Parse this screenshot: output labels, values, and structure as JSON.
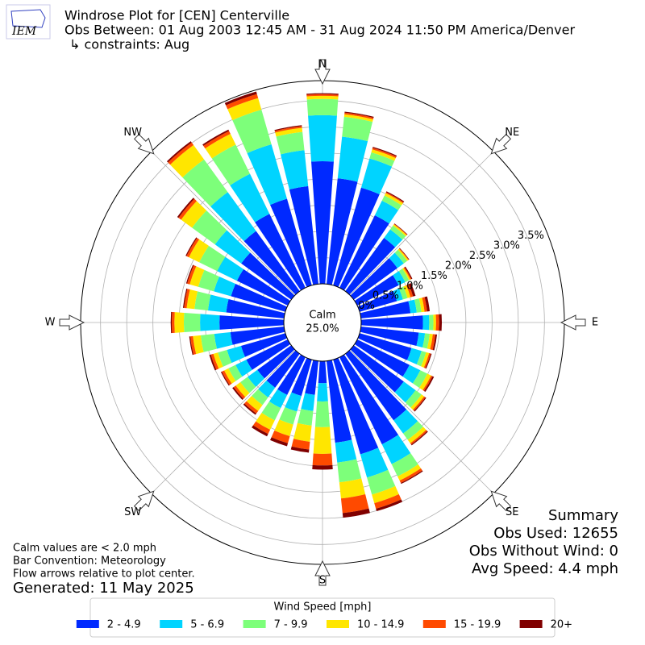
{
  "chart_data": {
    "type": "windrose",
    "title": "Windrose Plot for [CEN] Centerville",
    "subtitle": "Obs Between: 01 Aug 2003 12:45 AM - 31 Aug 2024 11:50 PM America/Denver",
    "constraints": "↳ constraints: Aug",
    "logo": "IEM",
    "calm_label": "Calm",
    "calm_value": 25.0,
    "calm_value_label": "25.0%",
    "x": [
      0,
      10,
      20,
      30,
      40,
      50,
      60,
      70,
      80,
      90,
      100,
      110,
      120,
      130,
      140,
      150,
      160,
      170,
      180,
      190,
      200,
      210,
      220,
      230,
      240,
      250,
      260,
      270,
      280,
      290,
      300,
      310,
      320,
      330,
      340,
      350
    ],
    "xticks": [
      {
        "value": 0,
        "label": "N"
      },
      {
        "value": 45,
        "label": "NE"
      },
      {
        "value": 90,
        "label": "E"
      },
      {
        "value": 135,
        "label": "SE"
      },
      {
        "value": 180,
        "label": "S"
      },
      {
        "value": 225,
        "label": "SW"
      },
      {
        "value": 270,
        "label": "W"
      },
      {
        "value": 315,
        "label": "NW"
      }
    ],
    "ylim": [
      0,
      3.88
    ],
    "yticks": [
      {
        "value": 0,
        "label": "0.0%"
      },
      {
        "value": 0.5,
        "label": "0.5%"
      },
      {
        "value": 1,
        "label": "1.0%"
      },
      {
        "value": 1.5,
        "label": "1.5%"
      },
      {
        "value": 2,
        "label": "2.0%"
      },
      {
        "value": 2.5,
        "label": "2.5%"
      },
      {
        "value": 3,
        "label": "3.0%"
      },
      {
        "value": 3.5,
        "label": "3.5%"
      }
    ],
    "grid": true,
    "legend_title": "Wind Speed [mph]",
    "legend_position": "bottom",
    "series": [
      {
        "name": "2 - 4.9",
        "color": "#0029ff",
        "values": [
          2.34,
          2.03,
          1.94,
          1.54,
          1.26,
          1.03,
          0.88,
          0.74,
          0.95,
          1.18,
          1.11,
          1.03,
          1.11,
          1.18,
          1.57,
          1.85,
          1.88,
          1.57,
          0.42,
          0.65,
          0.72,
          0.8,
          0.8,
          0.8,
          0.88,
          0.88,
          1.03,
          1.23,
          1.11,
          1.08,
          1.08,
          1.18,
          1.42,
          1.57,
          1.72,
          1.88
        ]
      },
      {
        "name": "5 - 6.9",
        "color": "#00d4ff",
        "values": [
          0.88,
          0.8,
          0.58,
          0.31,
          0.2,
          0.15,
          0.14,
          0.12,
          0.12,
          0.12,
          0.12,
          0.2,
          0.23,
          0.28,
          0.31,
          0.42,
          0.46,
          0.38,
          0.35,
          0.31,
          0.31,
          0.28,
          0.23,
          0.23,
          0.23,
          0.28,
          0.31,
          0.37,
          0.35,
          0.34,
          0.42,
          0.62,
          0.92,
          0.85,
          1.08,
          0.69
        ]
      },
      {
        "name": "7 - 9.9",
        "color": "#7dff7a",
        "values": [
          0.31,
          0.38,
          0.12,
          0.11,
          0.09,
          0.08,
          0.08,
          0.09,
          0.09,
          0.08,
          0.09,
          0.09,
          0.15,
          0.14,
          0.15,
          0.26,
          0.34,
          0.38,
          0.49,
          0.28,
          0.26,
          0.26,
          0.18,
          0.17,
          0.15,
          0.18,
          0.26,
          0.31,
          0.26,
          0.31,
          0.38,
          0.54,
          0.77,
          0.62,
          0.69,
          0.35
        ]
      },
      {
        "name": "10 - 14.9",
        "color": "#ffe600",
        "values": [
          0.06,
          0.05,
          0.06,
          0.05,
          0.03,
          0.03,
          0.03,
          0.06,
          0.06,
          0.05,
          0.06,
          0.06,
          0.08,
          0.06,
          0.08,
          0.09,
          0.17,
          0.31,
          0.51,
          0.31,
          0.23,
          0.2,
          0.14,
          0.11,
          0.09,
          0.09,
          0.15,
          0.18,
          0.15,
          0.17,
          0.22,
          0.26,
          0.34,
          0.23,
          0.23,
          0.08
        ]
      },
      {
        "name": "15 - 19.9",
        "color": "#ff4a00",
        "values": [
          0.03,
          0.03,
          0.03,
          0.02,
          0.01,
          0.01,
          0.02,
          0.05,
          0.05,
          0.06,
          0.05,
          0.03,
          0.03,
          0.03,
          0.03,
          0.05,
          0.11,
          0.28,
          0.22,
          0.15,
          0.14,
          0.09,
          0.06,
          0.05,
          0.05,
          0.05,
          0.05,
          0.05,
          0.05,
          0.05,
          0.05,
          0.06,
          0.06,
          0.06,
          0.08,
          0.03
        ]
      },
      {
        "name": "20+",
        "color": "#800000",
        "values": [
          0.02,
          0.02,
          0.02,
          0.02,
          0.01,
          0.01,
          0.02,
          0.05,
          0.05,
          0.05,
          0.03,
          0.02,
          0.03,
          0.02,
          0.02,
          0.02,
          0.05,
          0.09,
          0.08,
          0.06,
          0.06,
          0.05,
          0.03,
          0.03,
          0.02,
          0.03,
          0.02,
          0.02,
          0.02,
          0.02,
          0.02,
          0.03,
          0.03,
          0.03,
          0.05,
          0.02
        ]
      }
    ],
    "summary": [
      "Summary",
      "Obs Used: 12655",
      "Obs Without Wind: 0",
      "Avg Speed: 4.4 mph"
    ],
    "notes": [
      "Calm values are < 2.0 mph",
      "Bar Convention: Meteorology",
      "Flow arrows relative to plot center."
    ],
    "generated": "Generated: 11 May 2025"
  }
}
